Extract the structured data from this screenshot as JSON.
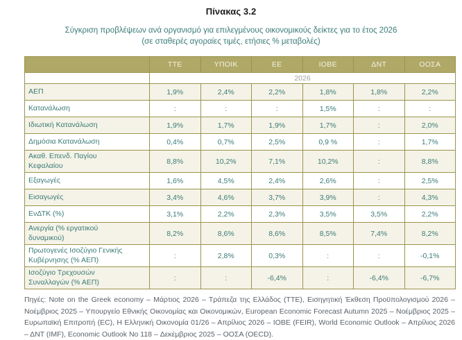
{
  "page": {
    "title": "Πίνακας 3.2",
    "subtitle_line1": "Σύγκριση προβλέψεων ανά οργανισμό για επιλεγμένους οικονομικούς δείκτες για το έτος 2026",
    "subtitle_line2": "(σε σταθερές αγοραίες τιμές, ετήσιες % μεταβολές)"
  },
  "table": {
    "org_columns": [
      "ΤΤΕ",
      "ΥΠΟΙΚ",
      "ΕΕ",
      "ΙΟΒΕ",
      "ΔΝΤ",
      "ΟΟΣΑ"
    ],
    "year": "2026",
    "rows": [
      {
        "label": "ΑΕΠ",
        "values": [
          "1,9%",
          "2,4%",
          "2,2%",
          "1,8%",
          "1,8%",
          "2,2%"
        ]
      },
      {
        "label": "Κατανάλωση",
        "values": [
          ":",
          ":",
          ":",
          "1,5%",
          ":",
          ":"
        ]
      },
      {
        "label": "Ιδιωτική Κατανάλωση",
        "values": [
          "1,9%",
          "1,7%",
          "1,9%",
          "1,7%",
          ":",
          "2,0%"
        ]
      },
      {
        "label": "Δημόσια Κατανάλωση",
        "values": [
          "0,4%",
          "0,7%",
          "2,5%",
          "0,9 %",
          ":",
          "1,7%"
        ]
      },
      {
        "label": "Ακαθ. Επενδ. Παγίου Κεφαλαίου",
        "values": [
          "8,8%",
          "10,2%",
          "7,1%",
          "10,2%",
          ":",
          "8,8%"
        ]
      },
      {
        "label": "Εξαγωγές",
        "values": [
          "1,6%",
          "4,5%",
          "2,4%",
          "2,6%",
          ":",
          "2,5%"
        ]
      },
      {
        "label": "Εισαγωγές",
        "values": [
          "3,4%",
          "4,6%",
          "3,7%",
          "3,9%",
          ":",
          "4,3%"
        ]
      },
      {
        "label": "ΕνΔΤΚ (%)",
        "values": [
          "3,1%",
          "2,2%",
          "2,3%",
          "3,5%",
          "3,5%",
          "2,2%"
        ]
      },
      {
        "label": "Ανεργία (% εργατικού δυναμικού)",
        "values": [
          "8,2%",
          "8,6%",
          "8,6%",
          "8,5%",
          "7,4%",
          "8,2%"
        ]
      },
      {
        "label": "Πρωτογενές Ισοζύγιο Γενικής Κυβέρνησης (% ΑΕΠ)",
        "values": [
          ":",
          "2,8%",
          "0,3%",
          ":",
          ":",
          "-0,1%"
        ]
      },
      {
        "label": "Ισοζύγιο Τρεχουσών Συναλλαγών (% ΑΕΠ)",
        "values": [
          ":",
          ":",
          "-6,4%",
          ":",
          "-6,4%",
          "-6,7%"
        ]
      }
    ]
  },
  "footer": {
    "sources_text": "Πηγές: Note on the Greek economy – Μάρτιος 2026 – Τράπεζα της Ελλάδος (ΤΤΕ), Εισηγητική Έκθεση Προϋπολογισμού 2026 – Νοέμβριος 2025 – Υπουργείο Εθνικής Οικονομίας και Οικονομικών, European Economic Forecast Autumn 2025 – Νοέμβριος 2025 – Ευρωπαϊκή Επιτροπή (EC), Η Ελληνική Οικονομία 01/26  – Απρίλιος 2026 – ΙΟΒΕ (FEIR), World Economic Outlook – Απρίλιος 2026 – ΔΝΤ (IMF), Economic Outlook No 118 – Δεκέμβριος 2025 – ΟΟΣΑ (OECD)."
  },
  "colors": {
    "header_bg": "#AFA867",
    "table_border": "#9A934E",
    "row_alt_bg": "#F5F3E7",
    "accent_teal": "#3A7B77",
    "year_text": "#A2A19A",
    "footer_text": "#5A6168"
  }
}
